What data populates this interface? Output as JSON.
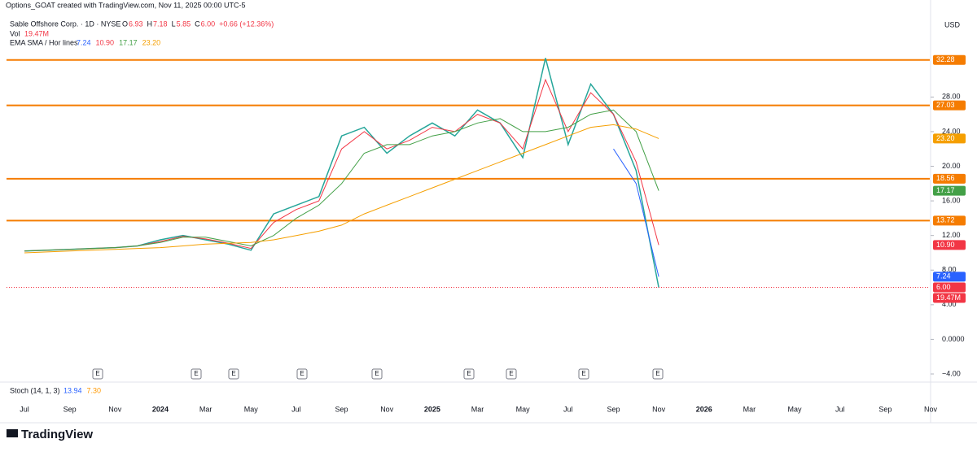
{
  "chart_data": {
    "type": "line",
    "credit": "Options_GOAT created with TradingView.com, Nov 11, 2025 00:00 UTC-5",
    "title": "Sable Offshore Corp. · 1D · NYSE",
    "ohlc": [
      {
        "key": "O",
        "value": "6.93"
      },
      {
        "key": "H",
        "value": "7.18"
      },
      {
        "key": "L",
        "value": "5.85"
      },
      {
        "key": "C",
        "value": "6.00"
      }
    ],
    "change": "+0.66 (+12.36%)",
    "volume_key": "Vol",
    "volume": "19.47M",
    "ma_legend": "EMA SMA / Hor lines",
    "ma_values": [
      "7.24",
      "10.90",
      "17.17",
      "23.20"
    ],
    "stoch_label": "Stoch (14, 1, 3)",
    "stoch_values": [
      "13.94",
      "7.30"
    ],
    "currency": "USD",
    "event_marker": "E",
    "brand": "TradingView",
    "categories": [
      "Jul",
      null,
      "Sep",
      null,
      "Nov",
      null,
      "2024",
      null,
      "Mar",
      null,
      "May",
      null,
      "Jul",
      null,
      "Sep",
      null,
      "Nov",
      null,
      "2025",
      null,
      "Mar",
      null,
      "May",
      null,
      "Jul",
      null,
      "Sep",
      null,
      "Nov",
      null,
      "2026",
      null,
      "Mar",
      null,
      "May",
      null,
      "Jul",
      null,
      "Sep",
      null,
      "Nov"
    ],
    "series": [
      {
        "color": "#26a69a",
        "values": [
          10.2,
          10.3,
          10.4,
          10.5,
          10.6,
          10.8,
          11.5,
          12.0,
          11.5,
          11.0,
          10.3,
          14.5,
          15.5,
          16.5,
          23.5,
          24.5,
          21.5,
          23.5,
          25.0,
          23.5,
          26.5,
          25.0,
          21.0,
          32.5,
          22.5,
          29.5,
          26.0,
          19.5,
          6.0,
          null,
          null,
          null,
          null,
          null,
          null,
          null,
          null,
          null,
          null,
          null,
          null
        ]
      },
      {
        "color": "#2962ff",
        "values": [
          null,
          null,
          null,
          null,
          null,
          null,
          null,
          null,
          null,
          null,
          null,
          null,
          null,
          null,
          null,
          null,
          null,
          null,
          null,
          null,
          null,
          null,
          null,
          null,
          null,
          null,
          22.0,
          18.0,
          7.24,
          null,
          null,
          null,
          null,
          null,
          null,
          null,
          null,
          null,
          null,
          null,
          null
        ]
      },
      {
        "color": "#f23645",
        "values": [
          10.2,
          10.3,
          10.4,
          10.5,
          10.6,
          10.8,
          11.3,
          11.9,
          11.6,
          11.1,
          10.5,
          13.5,
          15.0,
          16.0,
          22.0,
          24.0,
          22.0,
          23.0,
          24.5,
          24.0,
          26.0,
          25.0,
          22.0,
          30.0,
          24.0,
          28.5,
          26.0,
          20.5,
          10.9,
          null,
          null,
          null,
          null,
          null,
          null,
          null,
          null,
          null,
          null,
          null,
          null
        ]
      },
      {
        "color": "#43a047",
        "values": [
          10.2,
          10.3,
          10.4,
          10.5,
          10.6,
          10.8,
          11.2,
          11.8,
          11.8,
          11.3,
          10.8,
          12.0,
          14.0,
          15.5,
          18.0,
          21.5,
          22.5,
          22.5,
          23.5,
          24.0,
          25.0,
          25.5,
          24.0,
          24.0,
          24.5,
          26.0,
          26.5,
          24.0,
          17.17,
          null,
          null,
          null,
          null,
          null,
          null,
          null,
          null,
          null,
          null,
          null,
          null
        ]
      },
      {
        "color": "#f59f00",
        "values": [
          10.0,
          10.1,
          10.2,
          10.3,
          10.4,
          10.5,
          10.6,
          10.8,
          11.0,
          11.1,
          11.2,
          11.5,
          12.0,
          12.5,
          13.2,
          14.5,
          15.5,
          16.5,
          17.5,
          18.5,
          19.5,
          20.5,
          21.5,
          22.5,
          23.5,
          24.5,
          24.8,
          24.3,
          23.2,
          null,
          null,
          null,
          null,
          null,
          null,
          null,
          null,
          null,
          null,
          null,
          null
        ]
      }
    ],
    "hlines": [
      {
        "value": 32.28,
        "label": "32.28"
      },
      {
        "value": 27.03,
        "label": "27.03"
      },
      {
        "value": 18.56,
        "label": "18.56"
      },
      {
        "value": 13.72,
        "label": "13.72"
      }
    ],
    "hline_color": "#f57c00",
    "ylim": [
      -4.75,
      37.8
    ],
    "yticks": [
      {
        "value": 28,
        "label": "28.00"
      },
      {
        "value": 24,
        "label": "24.00"
      },
      {
        "value": 20,
        "label": "20.00"
      },
      {
        "value": 16,
        "label": "16.00"
      },
      {
        "value": 12,
        "label": "12.00"
      },
      {
        "value": 8,
        "label": "8.00"
      },
      {
        "value": 4,
        "label": "4.00"
      },
      {
        "value": 0,
        "label": "0.0000"
      },
      {
        "value": -4,
        "label": "−4.00"
      }
    ],
    "grid": false
  }
}
